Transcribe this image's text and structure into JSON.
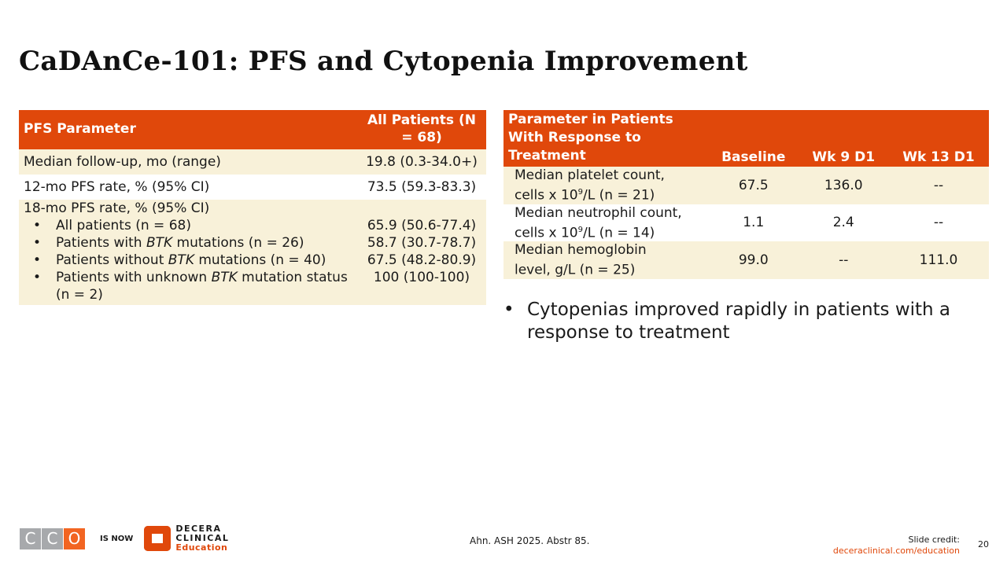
{
  "title": "CaDAnCe-101: PFS and Cytopenia Improvement",
  "pfs_table": {
    "headers": [
      "PFS Parameter",
      "All Patients (N = 68)"
    ],
    "rows": [
      {
        "label": "Median follow-up, mo (range)",
        "value": "19.8 (0.3-34.0+)"
      },
      {
        "label": "12-mo PFS rate, % (95% CI)",
        "value": "73.5 (59.3-83.3)"
      }
    ],
    "group": {
      "label": "18-mo PFS rate, % (95% CI)",
      "items": [
        {
          "pre": "All patients (n = 68)",
          "ital": "",
          "post": "",
          "value": "65.9 (50.6-77.4)"
        },
        {
          "pre": "Patients with ",
          "ital": "BTK",
          "post": " mutations (n = 26)",
          "value": "58.7 (30.7-78.7)"
        },
        {
          "pre": "Patients without ",
          "ital": "BTK",
          "post": " mutations (n = 40)",
          "value": "67.5 (48.2-80.9)"
        },
        {
          "pre": "Patients with unknown ",
          "ital": "BTK",
          "post": " mutation status (n = 2)",
          "value": "100 (100-100)"
        }
      ]
    }
  },
  "cyto_table": {
    "headers": [
      "Parameter in Patients With Response to Treatment",
      "Baseline",
      "Wk 9 D1",
      "Wk 13 D1"
    ],
    "rows": [
      {
        "l1": "Median platelet count,",
        "l2a": "cells x 10",
        "sup": "9",
        "l2b": "/L (n = 21)",
        "values": [
          "67.5",
          "136.0",
          "--"
        ]
      },
      {
        "l1": "Median neutrophil count,",
        "l2a": "cells x 10",
        "sup": "9",
        "l2b": "/L (n = 14)",
        "values": [
          "1.1",
          "2.4",
          "--"
        ]
      },
      {
        "l1": "Median hemoglobin",
        "l2a": "level, g/L (n = 25)",
        "sup": "",
        "l2b": "",
        "values": [
          "99.0",
          "--",
          "111.0"
        ]
      }
    ]
  },
  "bullet": "Cytopenias improved rapidly in patients with a response to treatment",
  "footer": {
    "logo_old": [
      "C",
      "C",
      "O"
    ],
    "is_now": "IS NOW",
    "logo_new": [
      "DECERA",
      "CLINICAL",
      "Education"
    ],
    "citation": "Ahn. ASH 2025. Abstr 85.",
    "credit_label": "Slide credit:",
    "credit_link": "deceraclinical.com/education",
    "page": "20"
  },
  "colors": {
    "accent": "#e0480b",
    "cream": "#f8f1d9"
  }
}
